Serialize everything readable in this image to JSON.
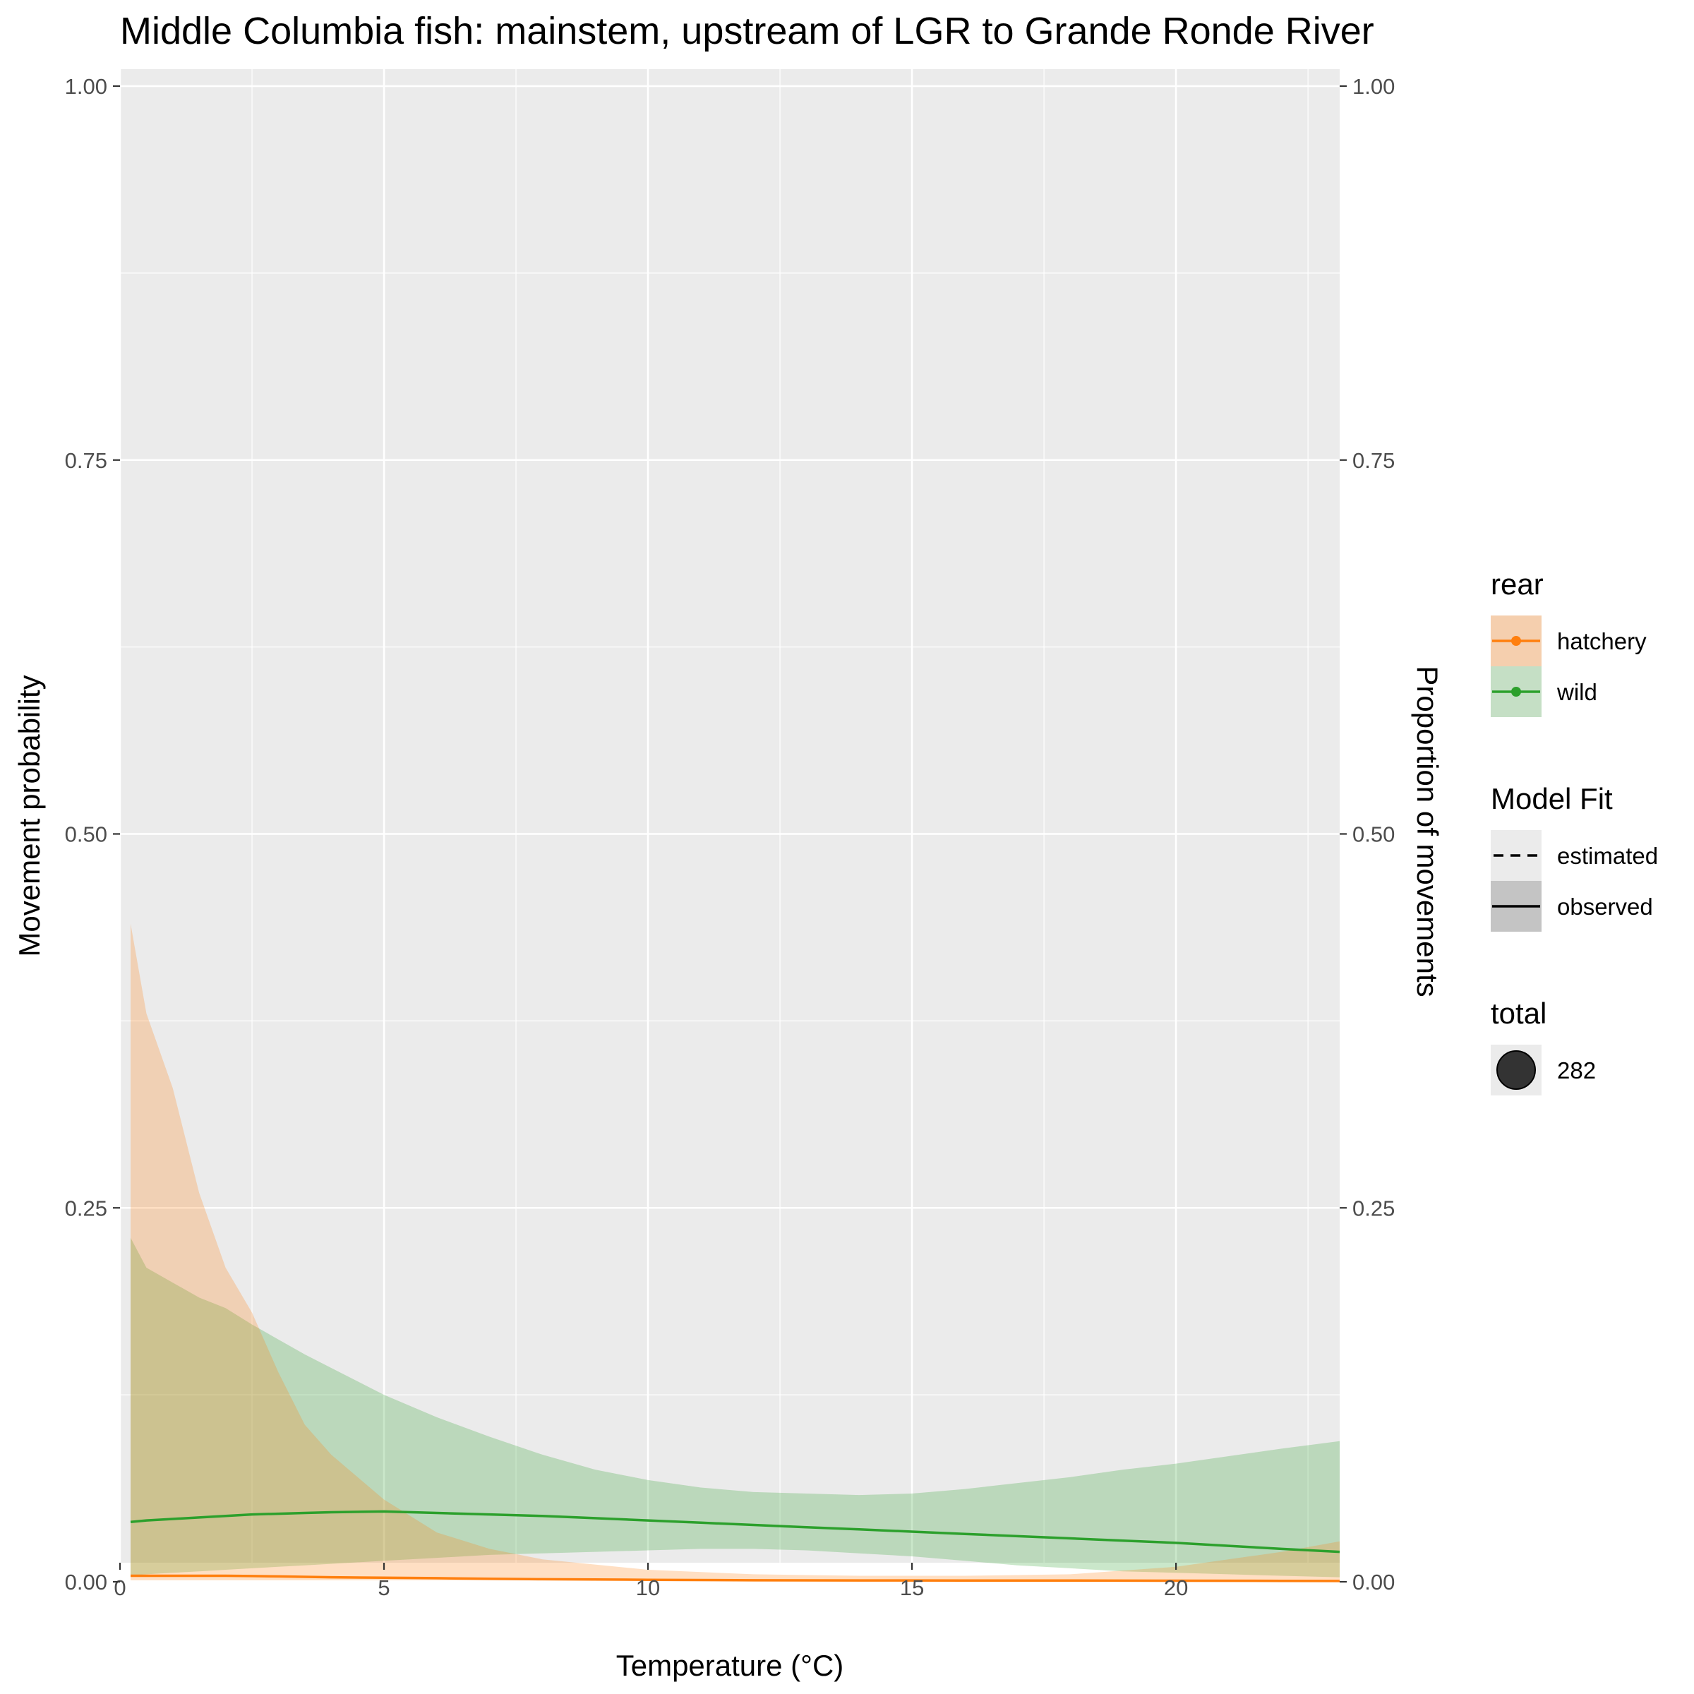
{
  "chart_data": {
    "type": "line",
    "title": "Middle Columbia fish: mainstem, upstream of LGR to Grande Ronde River",
    "xlabel": "Temperature (°C)",
    "ylabel": "Movement probability",
    "ylabel_right": "Proportion of movements",
    "xlim": [
      0,
      23.1
    ],
    "ylim": [
      0,
      1
    ],
    "x_ticks": [
      0,
      5,
      10,
      15,
      20
    ],
    "x_tick_labels": [
      "0",
      "5",
      "10",
      "15",
      "20"
    ],
    "y_ticks": [
      0,
      0.25,
      0.5,
      0.75,
      1
    ],
    "y_tick_labels": [
      "0.00",
      "0.25",
      "0.50",
      "0.75",
      "1.00"
    ],
    "grid": true,
    "legend_position": "right",
    "series": [
      {
        "name": "hatchery",
        "color": "#ff7f0e",
        "band_color": "#f5cfae",
        "x": [
          0.2,
          0.5,
          1,
          1.5,
          2,
          2.5,
          3,
          3.5,
          4,
          5,
          6,
          7,
          8,
          10,
          12,
          14,
          16,
          18,
          20,
          22,
          23.1
        ],
        "value": [
          0.004,
          0.004,
          0.004,
          0.004,
          0.004,
          0.0038,
          0.0036,
          0.0033,
          0.003,
          0.0027,
          0.0024,
          0.002,
          0.0017,
          0.0013,
          0.001,
          0.0009,
          0.0008,
          0.0008,
          0.0007,
          0.0006,
          0.0005
        ],
        "lower": [
          0.001,
          0.001,
          0.001,
          0.001,
          0.001,
          0.001,
          0.001,
          0.001,
          0.001,
          0.001,
          0.001,
          0.001,
          0.001,
          0.0008,
          0.0006,
          0.0005,
          0.0004,
          0.0004,
          0.0003,
          0.0003,
          0.0003
        ],
        "upper": [
          0.44,
          0.38,
          0.33,
          0.26,
          0.21,
          0.18,
          0.14,
          0.105,
          0.085,
          0.055,
          0.033,
          0.022,
          0.015,
          0.008,
          0.005,
          0.004,
          0.004,
          0.005,
          0.01,
          0.02,
          0.027
        ]
      },
      {
        "name": "wild",
        "color": "#2ca02c",
        "band_color": "#c5dfc5",
        "x": [
          0.2,
          0.5,
          1,
          1.5,
          2,
          2.5,
          3,
          3.5,
          4,
          5,
          6,
          7,
          8,
          9,
          10,
          11,
          12,
          13,
          14,
          15,
          16,
          17,
          18,
          19,
          20,
          21,
          22,
          23.1
        ],
        "value": [
          0.04,
          0.041,
          0.042,
          0.043,
          0.044,
          0.045,
          0.0455,
          0.046,
          0.0465,
          0.047,
          0.046,
          0.045,
          0.044,
          0.0425,
          0.041,
          0.0395,
          0.038,
          0.0365,
          0.035,
          0.0335,
          0.032,
          0.0305,
          0.029,
          0.0275,
          0.026,
          0.024,
          0.022,
          0.02
        ],
        "lower": [
          0.004,
          0.005,
          0.006,
          0.007,
          0.008,
          0.009,
          0.01,
          0.011,
          0.012,
          0.014,
          0.016,
          0.018,
          0.019,
          0.02,
          0.021,
          0.022,
          0.022,
          0.021,
          0.019,
          0.017,
          0.014,
          0.011,
          0.009,
          0.007,
          0.006,
          0.005,
          0.004,
          0.003
        ],
        "upper": [
          0.23,
          0.21,
          0.2,
          0.19,
          0.183,
          0.172,
          0.162,
          0.152,
          0.143,
          0.125,
          0.11,
          0.097,
          0.085,
          0.075,
          0.068,
          0.063,
          0.06,
          0.059,
          0.058,
          0.059,
          0.062,
          0.066,
          0.07,
          0.075,
          0.079,
          0.084,
          0.089,
          0.094
        ]
      }
    ],
    "legend": {
      "rear": {
        "title": "rear",
        "items": [
          {
            "label": "hatchery",
            "color": "#ff7f0e",
            "band_color": "#f5cfae"
          },
          {
            "label": "wild",
            "color": "#2ca02c",
            "band_color": "#c5dfc5"
          }
        ]
      },
      "model_fit": {
        "title": "Model Fit",
        "items": [
          {
            "label": "estimated",
            "linetype": "dashed"
          },
          {
            "label": "observed",
            "linetype": "solid"
          }
        ]
      },
      "total": {
        "title": "total",
        "items": [
          {
            "label": "282"
          }
        ]
      }
    }
  }
}
